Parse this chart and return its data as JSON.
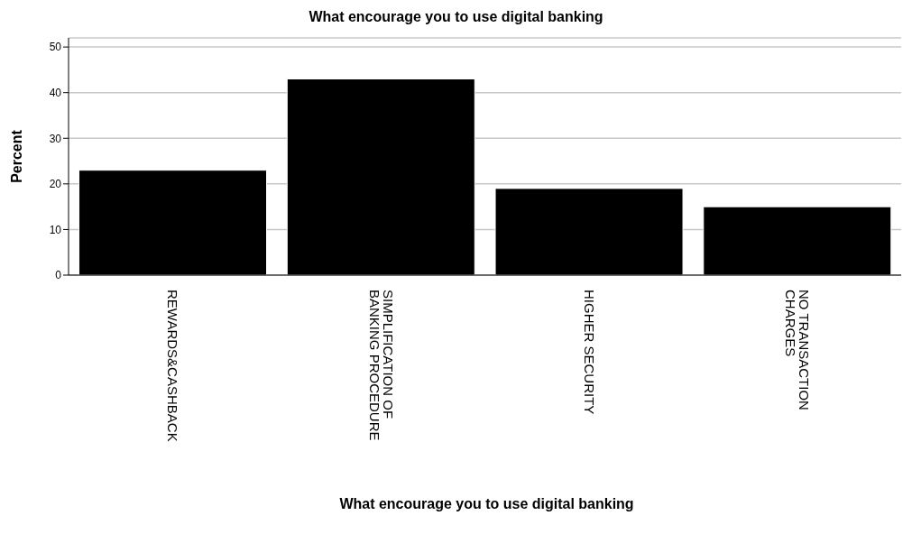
{
  "chart_data": {
    "type": "bar",
    "title": "What encourage you to use digital banking",
    "xlabel": "What encourage you to use digital banking",
    "ylabel": "Percent",
    "categories": [
      "REWARDS&CASHBACK",
      "SIMPLIFICATION OF BANKING PROCEDURE",
      "HIGHER SECURITY",
      "NO TRANSACTION CHARGES"
    ],
    "values": [
      23,
      43,
      19,
      15
    ],
    "color": "#000000",
    "ylim": [
      0,
      52
    ],
    "yticks": [
      0,
      10,
      20,
      30,
      40,
      50
    ],
    "grid": "y"
  }
}
